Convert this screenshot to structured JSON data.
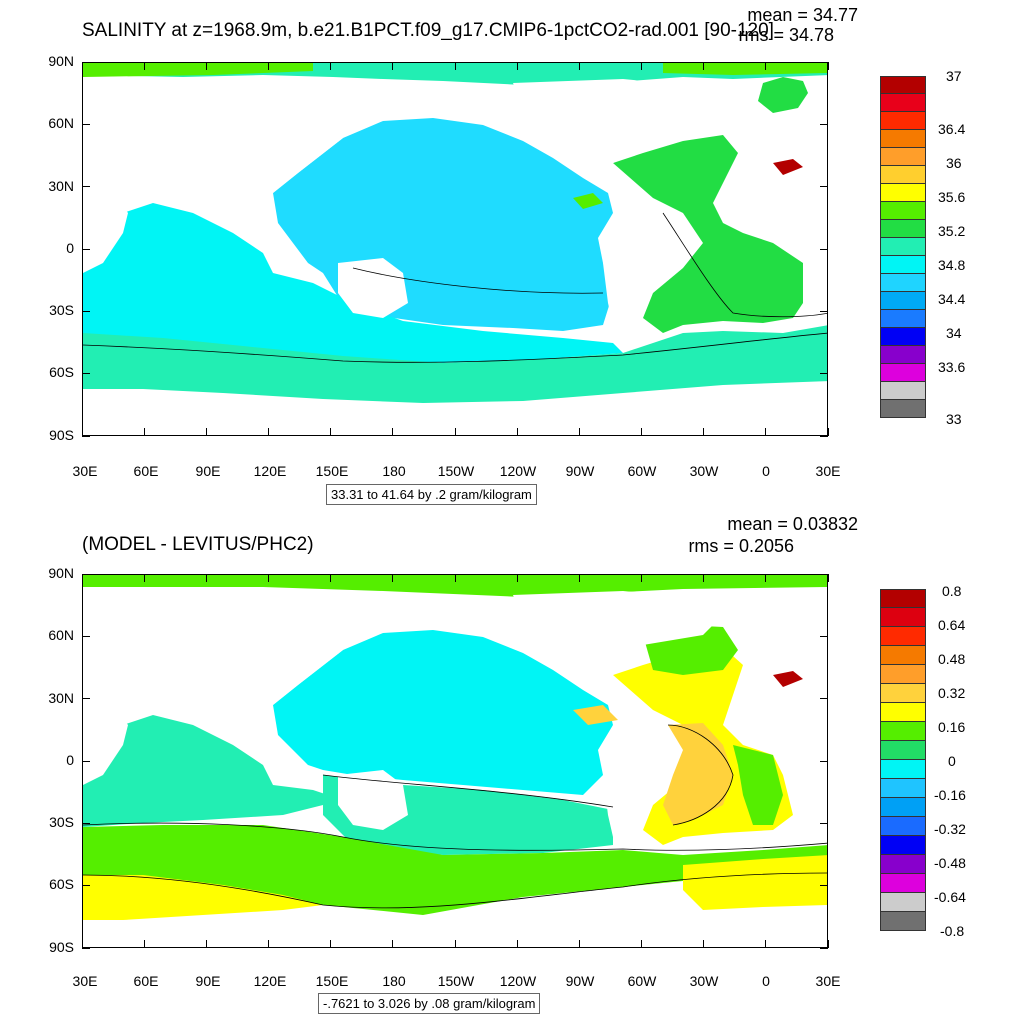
{
  "top": {
    "title": "SALINITY at z=1968.9m, b.e21.B1PCT.f09_g17.CMIP6-1pctCO2-rad.001 [90-120]",
    "mean": "mean = 34.77",
    "rms": "rms = 34.78",
    "info": "33.31 to 41.64 by .2 gram/kilogram",
    "colorbar_labels": [
      "37",
      "36.4",
      "36",
      "35.6",
      "35.2",
      "34.8",
      "34.4",
      "34",
      "33.6",
      "33"
    ],
    "colorbar_colors": [
      "#b30000",
      "#e8001a",
      "#ff2a00",
      "#f57a00",
      "#ff9e2a",
      "#ffcf2e",
      "#ffff00",
      "#55ee00",
      "#22dd44",
      "#22eeb3",
      "#00f5f5",
      "#1fd4ff",
      "#00aaf5",
      "#1a7bff",
      "#0000f5",
      "#8800cc",
      "#dd00dd",
      "#cccccc",
      "#707070"
    ]
  },
  "bottom": {
    "title": "(MODEL - LEVITUS/PHC2)",
    "mean": "mean = 0.03832",
    "rms": "rms = 0.2056",
    "info": "-.7621 to 3.026 by .08 gram/kilogram",
    "colorbar_labels": [
      "0.8",
      "0.64",
      "0.48",
      "0.32",
      "0.16",
      "0",
      "-0.16",
      "-0.32",
      "-0.48",
      "-0.64",
      "-0.8"
    ],
    "colorbar_colors": [
      "#b30000",
      "#dd0010",
      "#ff2a00",
      "#f57a00",
      "#ff9e2a",
      "#ffd23c",
      "#ffff00",
      "#55ee00",
      "#22dd66",
      "#00f5f5",
      "#1fc4ff",
      "#00a0f5",
      "#1a6bff",
      "#0000f5",
      "#8800cc",
      "#dd00dd",
      "#cccccc",
      "#707070"
    ]
  },
  "axes": {
    "lat_labels": [
      "90N",
      "60N",
      "30N",
      "0",
      "30S",
      "60S",
      "90S"
    ],
    "lon_labels": [
      "30E",
      "60E",
      "90E",
      "120E",
      "150E",
      "180",
      "150W",
      "120W",
      "90W",
      "60W",
      "30W",
      "0",
      "30E"
    ]
  },
  "colors": {
    "land": "#ffffff",
    "pacific_top": "#1fdcff",
    "southern_top": "#22eeb3",
    "atlantic_top": "#22dd44",
    "arctic_top": "#22eeb3"
  }
}
